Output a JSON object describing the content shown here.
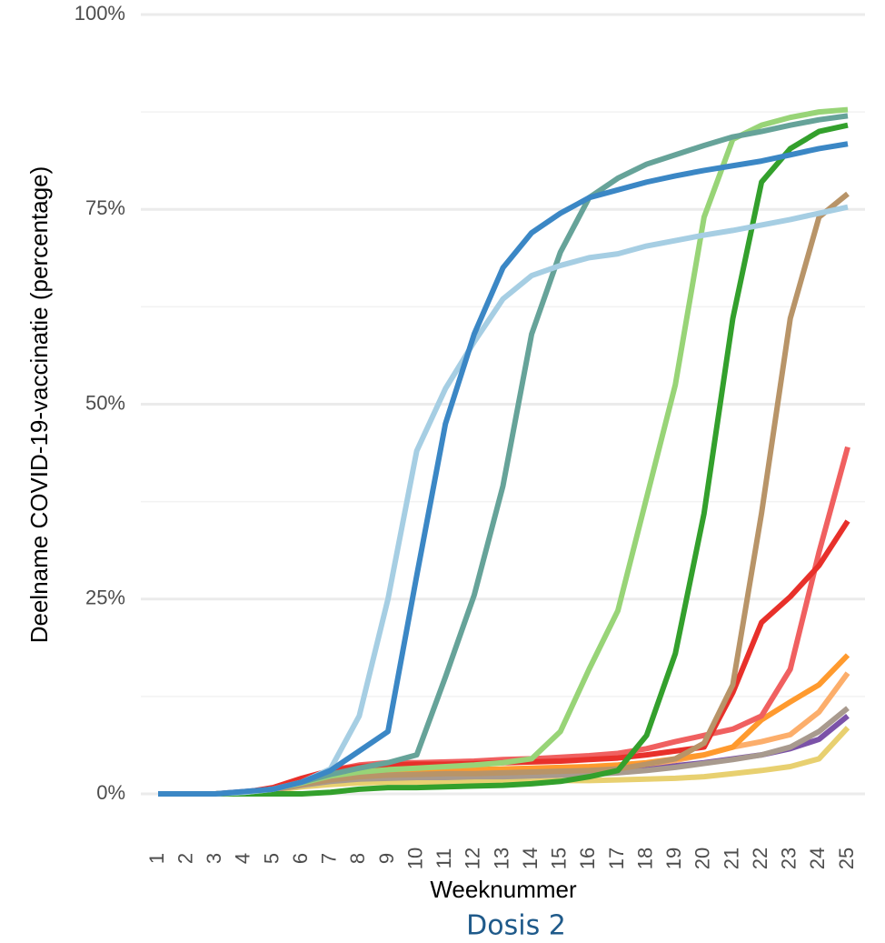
{
  "chart_data": {
    "type": "line",
    "subtitle": "Dosis 2",
    "x_label": "Weeknummer",
    "y_label": "Deelname COVID-19-vaccinatie (percentage)",
    "categories": [
      "1",
      "2",
      "3",
      "4",
      "5",
      "6",
      "7",
      "8",
      "9",
      "10",
      "11",
      "12",
      "13",
      "14",
      "15",
      "16",
      "17",
      "18",
      "19",
      "20",
      "21",
      "22",
      "23",
      "24",
      "25"
    ],
    "ylim": [
      0,
      100
    ],
    "yticks": [
      {
        "value": 0,
        "label": "0%"
      },
      {
        "value": 25,
        "label": "25%"
      },
      {
        "value": 50,
        "label": "50%"
      },
      {
        "value": 75,
        "label": "75%"
      },
      {
        "value": 100,
        "label": "100%"
      }
    ],
    "minor_yticks": [
      12.5,
      37.5,
      62.5,
      87.5
    ],
    "grid": true,
    "series": [
      {
        "color": "#e8d070",
        "values": [
          0,
          0,
          0,
          0.1,
          0.4,
          0.9,
          1.2,
          1.4,
          1.5,
          1.5,
          1.5,
          1.6,
          1.6,
          1.6,
          1.7,
          1.7,
          1.8,
          1.9,
          2,
          2.2,
          2.6,
          3,
          3.5,
          4.5,
          8.5
        ]
      },
      {
        "color": "#7b52a8",
        "values": [
          0,
          0,
          0,
          0.3,
          0.6,
          1.2,
          1.8,
          2.1,
          2.2,
          2.2,
          2.3,
          2.3,
          2.4,
          2.5,
          2.6,
          2.7,
          2.9,
          3.2,
          3.6,
          4,
          4.5,
          5,
          5.8,
          7,
          10
        ]
      },
      {
        "color": "#a89a8e",
        "values": [
          0,
          0,
          0,
          0.2,
          0.5,
          1.1,
          1.6,
          1.9,
          2,
          2.1,
          2.1,
          2.2,
          2.2,
          2.3,
          2.4,
          2.5,
          2.7,
          3,
          3.4,
          3.9,
          4.4,
          5,
          6,
          8,
          11
        ]
      },
      {
        "color": "#fcae6b",
        "values": [
          0,
          0,
          0,
          0.2,
          0.5,
          1.3,
          2,
          2.4,
          2.6,
          2.7,
          2.8,
          2.8,
          2.9,
          3,
          3.1,
          3.2,
          3.4,
          3.8,
          4.3,
          5,
          6,
          6.7,
          7.6,
          10.5,
          15.5
        ]
      },
      {
        "color": "#ff9a2e",
        "values": [
          0,
          0,
          0,
          0.2,
          0.6,
          1.5,
          2.3,
          2.7,
          2.9,
          3,
          3,
          3.1,
          3.2,
          3.3,
          3.4,
          3.5,
          3.7,
          4,
          4.5,
          5,
          6,
          9.5,
          11.8,
          14,
          17.8
        ]
      },
      {
        "color": "#f06060",
        "values": [
          0,
          0,
          0,
          0.2,
          0.7,
          1.8,
          3,
          3.7,
          4,
          4,
          4.1,
          4.2,
          4.4,
          4.5,
          4.7,
          4.9,
          5.2,
          5.8,
          6.7,
          7.5,
          8.3,
          10,
          16,
          31,
          44.5
        ]
      },
      {
        "color": "#e8302a",
        "values": [
          0,
          0,
          0,
          0.2,
          0.8,
          2,
          3,
          3.5,
          3.7,
          3.8,
          3.8,
          3.9,
          4,
          4.1,
          4.2,
          4.4,
          4.6,
          5,
          5.5,
          6,
          13,
          22,
          25.3,
          29.3,
          35
        ]
      },
      {
        "color": "#b89468",
        "values": [
          0,
          0,
          0,
          0.2,
          0.5,
          1.2,
          1.8,
          2.2,
          2.4,
          2.5,
          2.6,
          2.6,
          2.7,
          2.8,
          2.9,
          3,
          3.2,
          3.8,
          4.5,
          6.5,
          14,
          36,
          61,
          74,
          77
        ]
      },
      {
        "color": "#33a02c",
        "values": [
          0,
          0,
          0,
          0,
          0,
          0,
          0.2,
          0.6,
          0.8,
          0.8,
          0.9,
          1,
          1.1,
          1.3,
          1.6,
          2.2,
          3,
          7.5,
          18,
          36,
          61,
          78.5,
          82.8,
          85,
          85.8
        ]
      },
      {
        "color": "#98d477",
        "values": [
          0,
          0,
          0,
          0.2,
          0.6,
          1.4,
          2.3,
          2.8,
          3.1,
          3.3,
          3.5,
          3.7,
          4,
          4.5,
          8,
          16,
          23.5,
          38,
          52.5,
          74,
          84,
          85.8,
          86.8,
          87.5,
          87.8
        ]
      },
      {
        "color": "#66a399",
        "values": [
          0,
          0,
          0,
          0.2,
          0.6,
          1.5,
          2.5,
          3.3,
          4,
          5,
          15,
          25.5,
          39.5,
          59,
          69.5,
          76.5,
          79,
          80.8,
          82,
          83.2,
          84.3,
          85,
          85.8,
          86.5,
          87
        ]
      },
      {
        "color": "#a6cee3",
        "values": [
          0,
          0,
          0,
          0.2,
          0.6,
          1.5,
          3.2,
          10,
          25,
          44,
          52,
          58,
          63.5,
          66.5,
          67.8,
          68.8,
          69.3,
          70.3,
          71,
          71.7,
          72.3,
          73,
          73.7,
          74.5,
          75.3
        ]
      },
      {
        "color": "#3b87c5",
        "values": [
          0,
          0,
          0,
          0.3,
          0.6,
          1.5,
          3,
          5.5,
          8,
          28,
          47.5,
          59,
          67.5,
          72,
          74.5,
          76.5,
          77.5,
          78.5,
          79.3,
          80,
          80.6,
          81.2,
          82,
          82.8,
          83.4
        ]
      }
    ]
  }
}
